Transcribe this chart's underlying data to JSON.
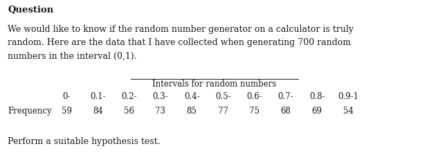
{
  "title": "Question",
  "paragraph": "We would like to know if the random number generator on a calculator is truly\nrandom. Here are the data that I have collected when generating 700 random\nnumbers in the interval (0,1).",
  "table_title": "Intervals for random numbers",
  "intervals": [
    "0-",
    "0.1-",
    "0.2-",
    "0.3-",
    "0.4-",
    "0.5-",
    "0.6-",
    "0.7-",
    "0.8-",
    "0.9-1"
  ],
  "row_label": "Frequency",
  "frequencies": [
    59,
    84,
    56,
    73,
    85,
    77,
    75,
    68,
    69,
    54
  ],
  "footer": "Perform a suitable hypothesis test.",
  "bg_color": "#ffffff",
  "text_color": "#1a1a1a",
  "font_size_title": 9.5,
  "font_size_body": 9.0,
  "font_size_table": 8.5
}
